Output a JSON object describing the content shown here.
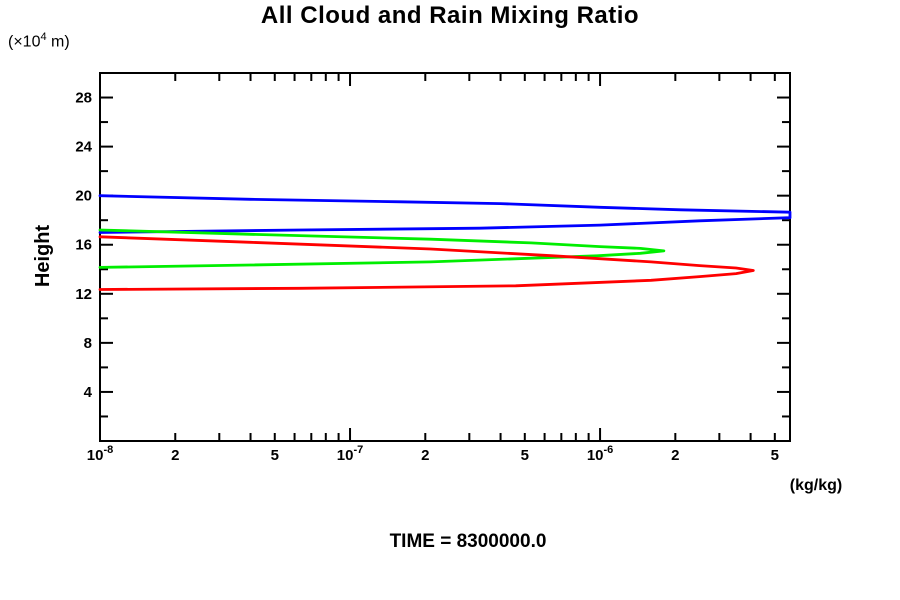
{
  "header": {
    "title": "All Cloud and Rain Mixing Ratio"
  },
  "footer": {
    "time_label": "TIME = 8300000.0"
  },
  "chart_data": {
    "type": "line",
    "title": "All Cloud and Rain Mixing Ratio",
    "xlabel": "(kg/kg)",
    "ylabel": "Height",
    "y_unit_prefix": "(×10",
    "y_unit_exp": "4",
    "y_unit_suffix": " m)",
    "x_scale": "log",
    "xlim": [
      1e-08,
      5.75e-06
    ],
    "ylim": [
      0,
      30
    ],
    "grid": false,
    "legend": "none",
    "frame_color": "#000000",
    "x_ticks_labeled": [
      {
        "v": 1e-08,
        "t": "10",
        "e": "-8"
      },
      {
        "v": 2e-08,
        "t": "2"
      },
      {
        "v": 5e-08,
        "t": "5"
      },
      {
        "v": 1e-07,
        "t": "10",
        "e": "-7"
      },
      {
        "v": 2e-07,
        "t": "2"
      },
      {
        "v": 5e-07,
        "t": "5"
      },
      {
        "v": 1e-06,
        "t": "10",
        "e": "-6"
      },
      {
        "v": 2e-06,
        "t": "2"
      },
      {
        "v": 5e-06,
        "t": "5"
      }
    ],
    "x_ticks_minor": [
      3e-08,
      4e-08,
      6e-08,
      7e-08,
      8e-08,
      9e-08,
      3e-07,
      4e-07,
      6e-07,
      7e-07,
      8e-07,
      9e-07,
      3e-06,
      4e-06
    ],
    "y_ticks_major": [
      4,
      8,
      12,
      16,
      20,
      24,
      28
    ],
    "y_ticks_minor": [
      2,
      6,
      10,
      14,
      18,
      22,
      26
    ],
    "series": [
      {
        "name": "profile-blue",
        "color": "#0000ff",
        "points": [
          [
            1e-08,
            20.0
          ],
          [
            4e-08,
            19.7
          ],
          [
            1.6e-07,
            19.5
          ],
          [
            4e-07,
            19.35
          ],
          [
            1e-06,
            19.05
          ],
          [
            2.1e-06,
            18.85
          ],
          [
            5.75e-06,
            18.65
          ],
          [
            5.75e-06,
            18.2
          ],
          [
            2.5e-06,
            17.95
          ],
          [
            1e-06,
            17.6
          ],
          [
            3.3e-07,
            17.35
          ],
          [
            6.3e-08,
            17.2
          ],
          [
            1e-08,
            17.0
          ]
        ]
      },
      {
        "name": "profile-green",
        "color": "#00ee00",
        "points": [
          [
            1e-08,
            17.2
          ],
          [
            4e-08,
            16.85
          ],
          [
            2.1e-07,
            16.45
          ],
          [
            5.3e-07,
            16.15
          ],
          [
            1e-06,
            15.85
          ],
          [
            1.45e-06,
            15.7
          ],
          [
            1.8e-06,
            15.5
          ],
          [
            1.45e-06,
            15.3
          ],
          [
            9.7e-07,
            15.1
          ],
          [
            5.3e-07,
            14.9
          ],
          [
            2.1e-07,
            14.6
          ],
          [
            4e-08,
            14.35
          ],
          [
            1e-08,
            14.15
          ]
        ]
      },
      {
        "name": "profile-red",
        "color": "#ff0000",
        "points": [
          [
            1e-08,
            16.65
          ],
          [
            4e-08,
            16.2
          ],
          [
            2.1e-07,
            15.65
          ],
          [
            6.5e-07,
            15.1
          ],
          [
            1.6e-06,
            14.6
          ],
          [
            2.5e-06,
            14.3
          ],
          [
            3.5e-06,
            14.1
          ],
          [
            4.1e-06,
            13.9
          ],
          [
            3.5e-06,
            13.65
          ],
          [
            2.5e-06,
            13.4
          ],
          [
            1.6e-06,
            13.1
          ],
          [
            4.6e-07,
            12.65
          ],
          [
            6.3e-08,
            12.45
          ],
          [
            1e-08,
            12.35
          ]
        ]
      }
    ],
    "annotation": "TIME = 8300000.0"
  }
}
